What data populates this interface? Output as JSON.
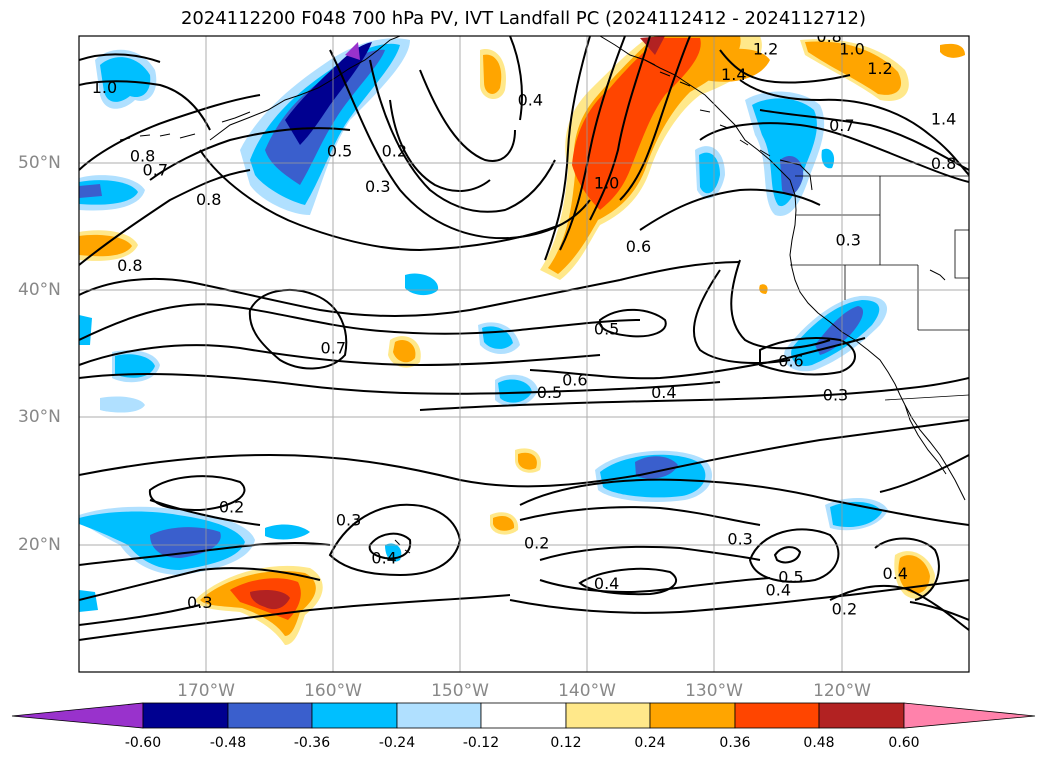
{
  "title": "2024112200 F048 700 hPa PV, IVT Landfall PC (2024112412 - 2024112712)",
  "latitude_labels": [
    "50°N",
    "40°N",
    "30°N",
    "20°N"
  ],
  "longitude_labels": [
    "170°W",
    "160°W",
    "150°W",
    "140°W",
    "130°W",
    "120°W"
  ],
  "extent": {
    "lon_min": -180,
    "lon_max": -110,
    "lat_min": 10,
    "lat_max": 60
  },
  "gridlines": true,
  "colorbar": {
    "orientation": "horizontal",
    "extend": "both",
    "ticks": [
      "-0.60",
      "-0.48",
      "-0.36",
      "-0.24",
      "-0.12",
      "0.12",
      "0.24",
      "0.36",
      "0.48",
      "0.60"
    ],
    "colors": [
      "#9932cc",
      "#000090",
      "#3a5fcd",
      "#00bfff",
      "#b0e0ff",
      "#ffffff",
      "#ffe88a",
      "#ffa500",
      "#ff4500",
      "#b22222",
      "#ff82ab"
    ]
  },
  "contour_labels": [
    {
      "text": "1.0",
      "lon": -178,
      "lat": 56
    },
    {
      "text": "0.8",
      "lon": -175,
      "lat": 50.6
    },
    {
      "text": "0.7",
      "lon": -174,
      "lat": 49.5
    },
    {
      "text": "0.8",
      "lon": -176,
      "lat": 42
    },
    {
      "text": "0.8",
      "lon": -169.8,
      "lat": 47.2
    },
    {
      "text": "0.5",
      "lon": -159.5,
      "lat": 51
    },
    {
      "text": "0.2",
      "lon": -155.2,
      "lat": 51
    },
    {
      "text": "0.3",
      "lon": -156.5,
      "lat": 48.2
    },
    {
      "text": "0.4",
      "lon": -144.5,
      "lat": 55
    },
    {
      "text": "0.7",
      "lon": -160,
      "lat": 35.5
    },
    {
      "text": "0.6",
      "lon": -136,
      "lat": 43.5
    },
    {
      "text": "0.5",
      "lon": -138.5,
      "lat": 37
    },
    {
      "text": "0.6",
      "lon": -141,
      "lat": 33
    },
    {
      "text": "0.5",
      "lon": -143,
      "lat": 32
    },
    {
      "text": "0.4",
      "lon": -134,
      "lat": 32
    },
    {
      "text": "0.6",
      "lon": -124,
      "lat": 34.5
    },
    {
      "text": "0.3",
      "lon": -120.5,
      "lat": 31.8
    },
    {
      "text": "1.0",
      "lon": -138.5,
      "lat": 48.5
    },
    {
      "text": "1.2",
      "lon": -126,
      "lat": 59
    },
    {
      "text": "1.4",
      "lon": -128.5,
      "lat": 57
    },
    {
      "text": "1.2",
      "lon": -117,
      "lat": 57.5
    },
    {
      "text": "1.0",
      "lon": -119.2,
      "lat": 59
    },
    {
      "text": "0.8",
      "lon": -121,
      "lat": 60
    },
    {
      "text": "0.7",
      "lon": -120,
      "lat": 53
    },
    {
      "text": "1.4",
      "lon": -112,
      "lat": 53.5
    },
    {
      "text": "0.8",
      "lon": -112,
      "lat": 50
    },
    {
      "text": "0.3",
      "lon": -119.5,
      "lat": 44
    },
    {
      "text": "0.2",
      "lon": -168,
      "lat": 23
    },
    {
      "text": "0.3",
      "lon": -170.5,
      "lat": 15.5
    },
    {
      "text": "0.3",
      "lon": -158.8,
      "lat": 22
    },
    {
      "text": "0.4",
      "lon": -156,
      "lat": 19
    },
    {
      "text": "0.2",
      "lon": -144,
      "lat": 20.2
    },
    {
      "text": "0.3",
      "lon": -128,
      "lat": 20.5
    },
    {
      "text": "0.4",
      "lon": -138.5,
      "lat": 17
    },
    {
      "text": "0.4",
      "lon": -125,
      "lat": 16.5
    },
    {
      "text": "0.5",
      "lon": -124,
      "lat": 17.5
    },
    {
      "text": "0.2",
      "lon": -119.8,
      "lat": 15
    },
    {
      "text": "0.4",
      "lon": -115.8,
      "lat": 17.8
    }
  ]
}
